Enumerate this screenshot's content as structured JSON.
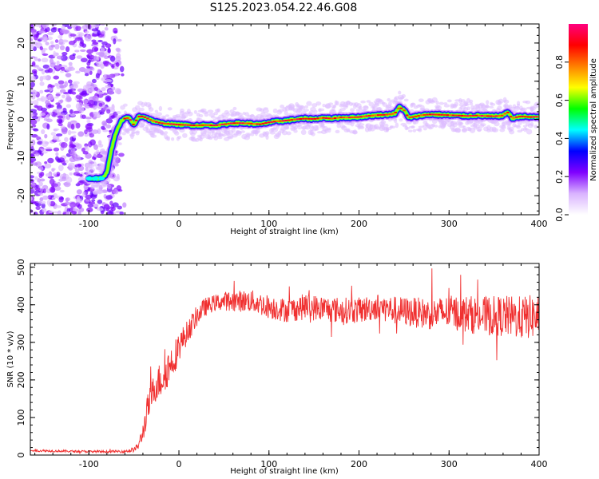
{
  "figure": {
    "title": "S125.2023.054.22.46.G08"
  },
  "chart_data": [
    {
      "type": "heatmap",
      "name": "spectrogram",
      "xlabel": "Height of straight line (km)",
      "ylabel": "Frequency (Hz)",
      "xlim": [
        -165,
        400
      ],
      "ylim": [
        -25,
        25
      ],
      "xticks": [
        -100,
        0,
        100,
        200,
        300,
        400
      ],
      "yticks": [
        -20,
        -10,
        0,
        10,
        20
      ],
      "colorbar": {
        "label": "Normalized spectral amplitude",
        "range": [
          0,
          1
        ],
        "ticks": [
          0.0,
          0.2,
          0.4,
          0.6,
          0.8
        ],
        "colormap": [
          "#ffffff",
          "#d9b3ff",
          "#8000ff",
          "#0000ff",
          "#00ffff",
          "#00ff00",
          "#ffff00",
          "#ff8000",
          "#ff0000",
          "#ff007f"
        ]
      },
      "noise_region_x": [
        -165,
        -75
      ],
      "peak_track": {
        "x": [
          -100,
          -92,
          -85,
          -80,
          -76,
          -72,
          -68,
          -64,
          -60,
          -55,
          -50,
          -45,
          -40,
          -35,
          -30,
          -20,
          -10,
          0,
          10,
          20,
          30,
          40,
          50,
          60,
          70,
          80,
          90,
          100,
          110,
          120,
          130,
          140,
          150,
          160,
          170,
          180,
          190,
          200,
          210,
          220,
          230,
          240,
          245,
          250,
          255,
          260,
          270,
          280,
          290,
          300,
          310,
          320,
          330,
          340,
          350,
          360,
          365,
          370,
          380,
          390,
          400
        ],
        "y": [
          -15.5,
          -15.5,
          -15.5,
          -14,
          -9,
          -5,
          -2.5,
          -0.5,
          0.2,
          0.4,
          -1.5,
          0.7,
          0.8,
          0.3,
          -0.3,
          -1,
          -1.2,
          -1.4,
          -1.5,
          -1.6,
          -1.5,
          -1.6,
          -1.3,
          -1,
          -1,
          -1.1,
          -1.3,
          -0.8,
          -0.5,
          -0.3,
          0,
          0.2,
          0.1,
          0.4,
          0.2,
          0.5,
          0.5,
          0.6,
          0.9,
          1.1,
          1.2,
          1.5,
          3.2,
          2.5,
          0.5,
          0.6,
          1.1,
          1.3,
          1.2,
          1.1,
          1.0,
          0.9,
          1.0,
          0.9,
          0.8,
          1.0,
          2.0,
          0.3,
          0.8,
          0.6,
          0.7
        ]
      }
    },
    {
      "type": "line",
      "name": "snr",
      "xlabel": "Height of straight line (km)",
      "ylabel": "SNR (10 * v/v)",
      "xlim": [
        -165,
        400
      ],
      "ylim": [
        0,
        510
      ],
      "xticks": [
        -100,
        0,
        100,
        200,
        300,
        400
      ],
      "yticks": [
        0,
        100,
        200,
        300,
        400,
        500
      ],
      "color": "#f03030",
      "series": [
        {
          "x": [
            -165,
            -120,
            -80,
            -60,
            -50,
            -45,
            -40,
            -35,
            -30,
            -25,
            -20,
            -15,
            -10,
            -5,
            0,
            5,
            10,
            15,
            20,
            25,
            30,
            35,
            40,
            50,
            60,
            80,
            100,
            120,
            140,
            160,
            180,
            200,
            220,
            240,
            260,
            280,
            300,
            320,
            340,
            360,
            380,
            400
          ],
          "values": [
            12,
            10,
            9,
            10,
            14,
            25,
            60,
            120,
            160,
            190,
            200,
            220,
            240,
            260,
            290,
            310,
            330,
            350,
            370,
            385,
            395,
            400,
            405,
            410,
            410,
            410,
            395,
            385,
            395,
            390,
            385,
            385,
            395,
            385,
            380,
            375,
            380,
            375,
            370,
            370,
            365,
            370
          ],
          "spread": [
            3,
            3,
            3,
            4,
            6,
            10,
            25,
            40,
            40,
            45,
            50,
            50,
            50,
            45,
            40,
            35,
            30,
            30,
            28,
            25,
            25,
            22,
            22,
            25,
            28,
            30,
            32,
            32,
            35,
            35,
            35,
            35,
            35,
            38,
            40,
            42,
            45,
            50,
            52,
            55,
            58,
            60
          ]
        }
      ]
    }
  ]
}
